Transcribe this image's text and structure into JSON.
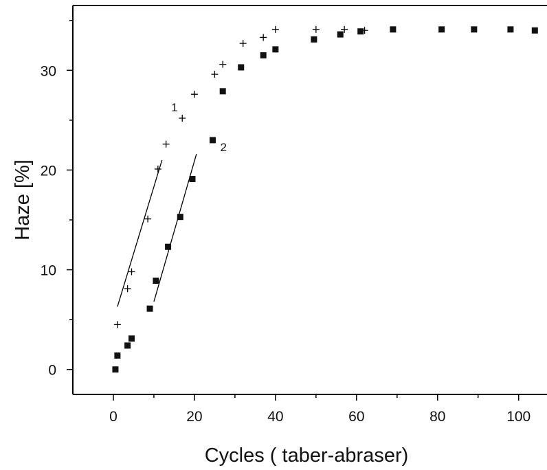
{
  "chart_data": {
    "type": "scatter",
    "title": "",
    "xlabel": "Cycles ( taber-abraser)",
    "ylabel": "Haze [%]",
    "xlim": [
      -10,
      107
    ],
    "ylim": [
      -2.5,
      36.5
    ],
    "xticks": [
      0,
      20,
      40,
      60,
      80,
      100
    ],
    "yticks": [
      0,
      10,
      20,
      30
    ],
    "grid": false,
    "series": [
      {
        "name": "1",
        "marker": "plus",
        "color": "#000000",
        "x": [
          1,
          3.5,
          4.5,
          8.5,
          11,
          13,
          17,
          20,
          25,
          27,
          32,
          37,
          40,
          50,
          57,
          62
        ],
        "y": [
          4.5,
          8.1,
          9.8,
          15.1,
          20.1,
          22.6,
          25.2,
          27.6,
          29.6,
          30.6,
          32.7,
          33.3,
          34.1,
          34.1,
          34.1,
          34.0
        ]
      },
      {
        "name": "2",
        "marker": "square",
        "color": "#111111",
        "x": [
          0.5,
          1,
          3.5,
          4.5,
          9,
          10.5,
          13.5,
          16.5,
          19.5,
          24.5,
          27,
          31.5,
          37,
          40,
          49.5,
          56,
          61,
          69,
          81,
          89,
          98,
          104
        ],
        "y": [
          0.0,
          1.4,
          2.4,
          3.1,
          6.1,
          8.9,
          12.3,
          15.3,
          19.1,
          23.0,
          27.9,
          30.3,
          31.5,
          32.1,
          33.1,
          33.6,
          33.9,
          34.1,
          34.1,
          34.1,
          34.1,
          34.0
        ]
      }
    ],
    "fit_lines": [
      {
        "x": [
          1,
          12
        ],
        "y": [
          6.3,
          21.0
        ],
        "style": "solid"
      },
      {
        "x": [
          10,
          20.5
        ],
        "y": [
          6.8,
          21.6
        ],
        "style": "solid"
      }
    ]
  }
}
